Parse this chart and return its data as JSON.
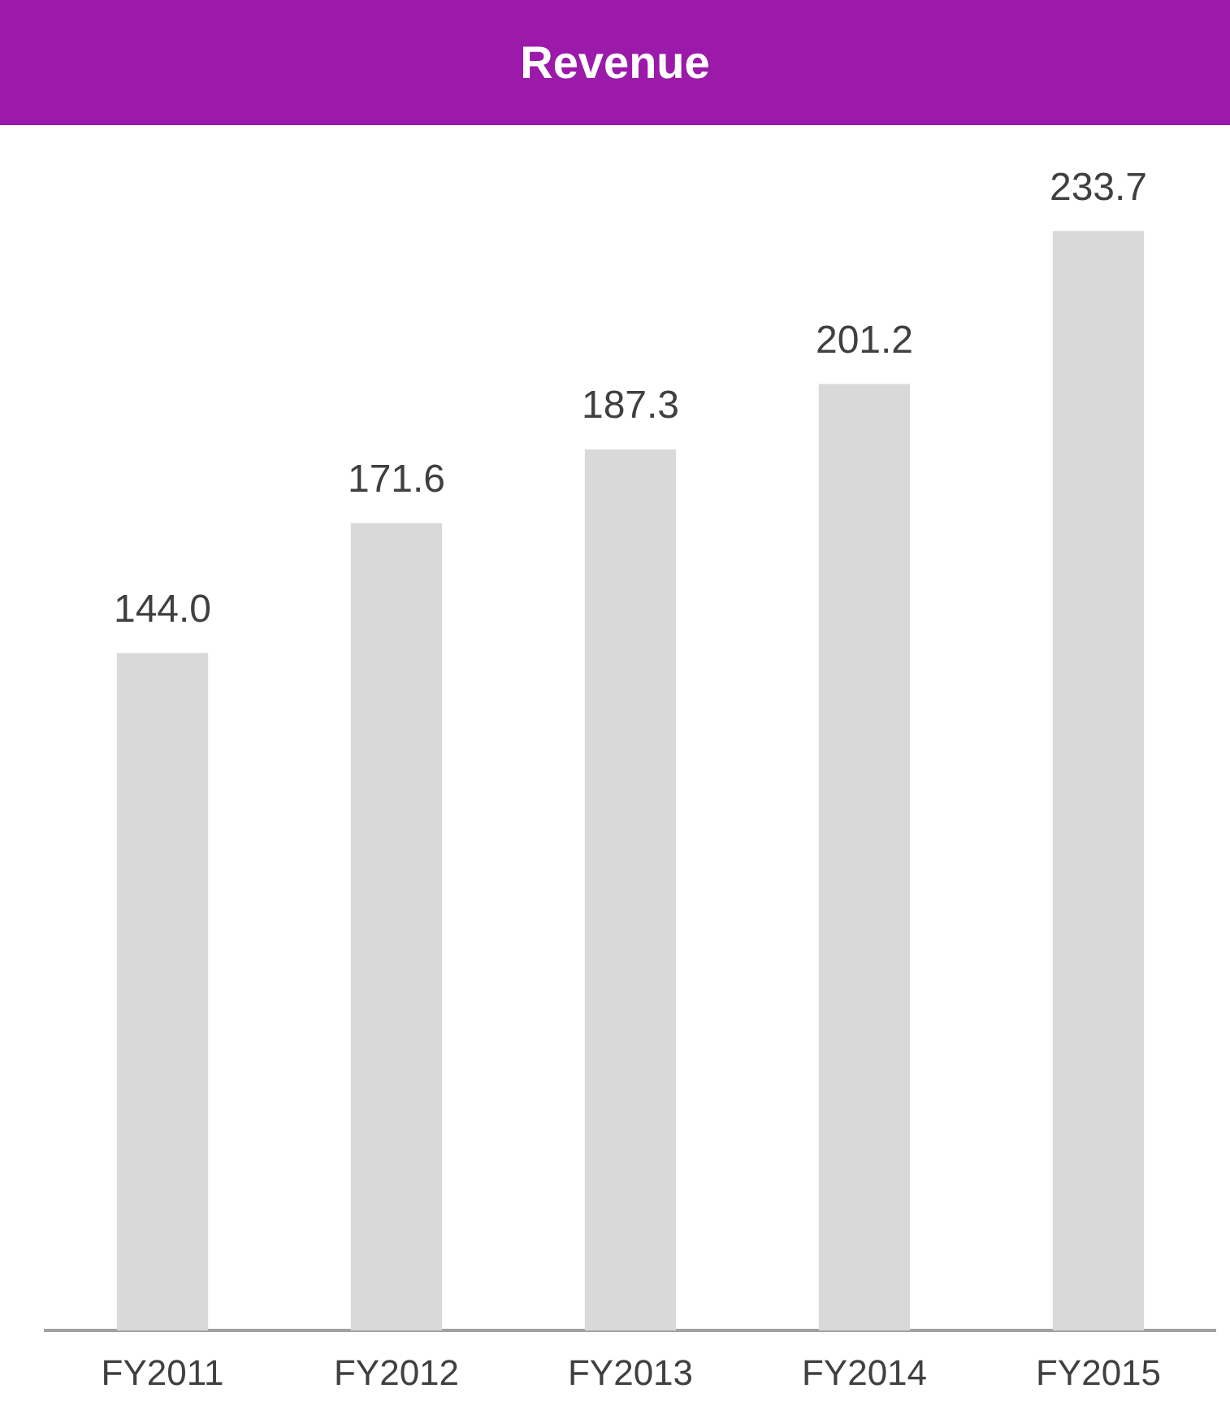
{
  "chart_data": {
    "type": "bar",
    "title": "Revenue",
    "categories": [
      "FY2011",
      "FY2012",
      "FY2013",
      "FY2014",
      "FY2015"
    ],
    "values": [
      144.0,
      171.6,
      187.3,
      201.2,
      233.7
    ],
    "value_labels": [
      "144.0",
      "171.6",
      "187.3",
      "201.2",
      "233.7"
    ],
    "color": "#d9d9d9",
    "legend": false,
    "grid": false,
    "tick_labels": "x"
  }
}
